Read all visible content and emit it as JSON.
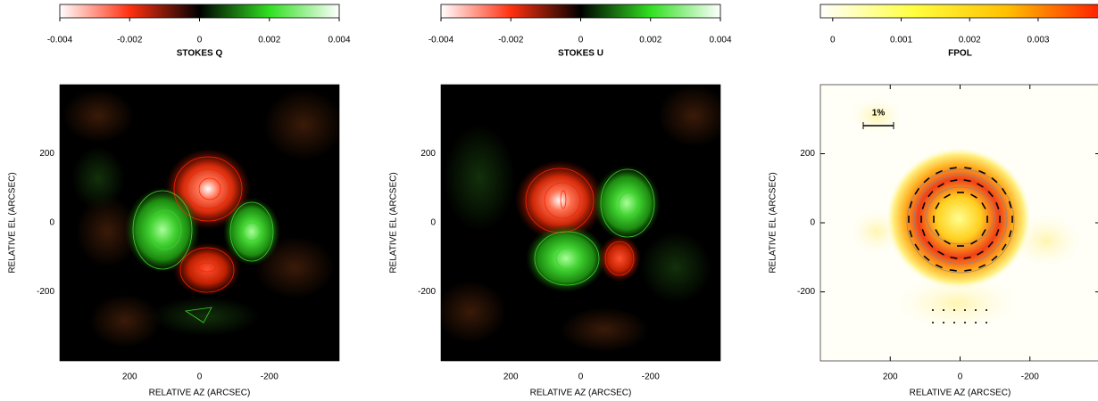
{
  "chart_data": [
    {
      "type": "heatmap",
      "colorbar_label": "STOKES Q",
      "clim": [
        -0.004,
        0.004
      ],
      "colorbar_ticks": [
        -0.004,
        -0.002,
        0,
        0.002,
        0.004
      ],
      "colormap": [
        "#ffffff",
        "#ff3010",
        "#000000",
        "#30e020",
        "#ffffff"
      ],
      "xlabel": "RELATIVE AZ (ARCSEC)",
      "ylabel": "RELATIVE EL (ARCSEC)",
      "xlim": [
        400,
        -400
      ],
      "ylim": [
        -400,
        400
      ],
      "xticks": [
        200,
        0,
        -200
      ],
      "yticks": [
        -200,
        0,
        200
      ]
    },
    {
      "type": "heatmap",
      "colorbar_label": "STOKES U",
      "clim": [
        -0.004,
        0.004
      ],
      "colorbar_ticks": [
        -0.004,
        -0.002,
        0,
        0.002,
        0.004
      ],
      "colormap": [
        "#ffffff",
        "#ff3010",
        "#000000",
        "#30e020",
        "#ffffff"
      ],
      "xlabel": "RELATIVE AZ (ARCSEC)",
      "ylabel": "RELATIVE EL (ARCSEC)",
      "xlim": [
        400,
        -400
      ],
      "ylim": [
        -400,
        400
      ],
      "xticks": [
        200,
        0,
        -200
      ],
      "yticks": [
        -200,
        0,
        200
      ]
    },
    {
      "type": "heatmap",
      "colorbar_label": "FPOL",
      "clim": [
        -0.00018,
        0.0039
      ],
      "colorbar_ticks": [
        0,
        0.001,
        0.002,
        0.003
      ],
      "colormap": [
        "#ffffff",
        "#ffff40",
        "#ffc000",
        "#ff2000"
      ],
      "xlabel": "RELATIVE AZ (ARCSEC)",
      "ylabel": "RELATIVE EL (ARCSEC)",
      "xlim": [
        400,
        -400
      ],
      "ylim": [
        -400,
        400
      ],
      "xticks": [
        200,
        0,
        -200
      ],
      "yticks": [
        -200,
        0,
        200
      ],
      "annotation": "1%"
    }
  ]
}
